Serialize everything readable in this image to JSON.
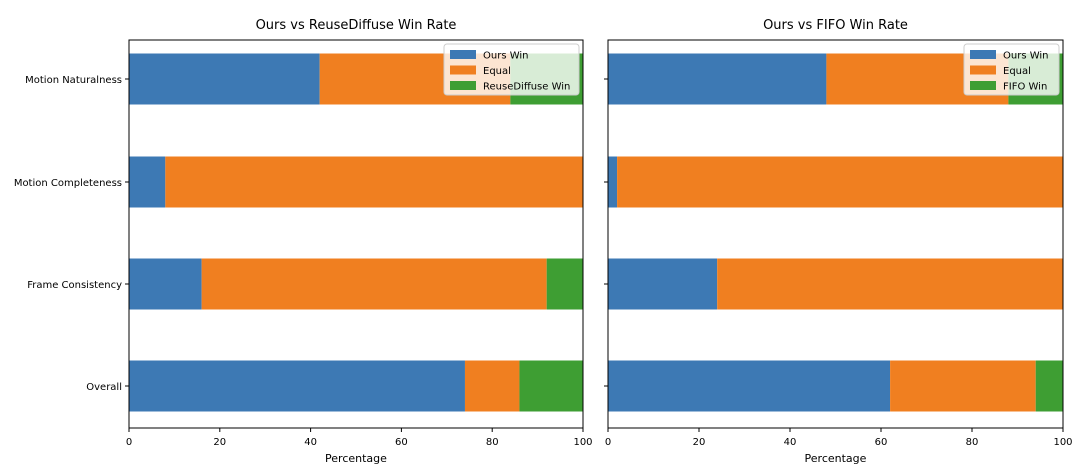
{
  "chart_data": [
    {
      "type": "bar",
      "orientation": "horizontal",
      "stacked": true,
      "title": "Ours vs ReuseDiffuse Win Rate",
      "xlabel": "Percentage",
      "ylabel": "",
      "xlim": [
        0,
        100
      ],
      "xticks": [
        "0",
        "20",
        "40",
        "60",
        "80",
        "100"
      ],
      "categories": [
        "Motion Naturalness",
        "Motion Completeness",
        "Frame Consistency",
        "Overall"
      ],
      "series": [
        {
          "name": "Ours Win",
          "color": "#3d79b4",
          "values": [
            42,
            8,
            16,
            74
          ]
        },
        {
          "name": "Equal",
          "color": "#f07f20",
          "values": [
            42,
            92,
            76,
            12
          ]
        },
        {
          "name": "ReuseDiffuse Win",
          "color": "#3e9e33",
          "values": [
            16,
            0,
            8,
            14
          ]
        }
      ],
      "legend": "top-right",
      "grid": false
    },
    {
      "type": "bar",
      "orientation": "horizontal",
      "stacked": true,
      "title": "Ours vs FIFO Win Rate",
      "xlabel": "Percentage",
      "ylabel": "",
      "xlim": [
        0,
        100
      ],
      "xticks": [
        "0",
        "20",
        "40",
        "60",
        "80",
        "100"
      ],
      "categories": [
        "Motion Naturalness",
        "Motion Completeness",
        "Frame Consistency",
        "Overall"
      ],
      "show_category_labels": false,
      "series": [
        {
          "name": "Ours Win",
          "color": "#3d79b4",
          "values": [
            48,
            2,
            24,
            62
          ]
        },
        {
          "name": "Equal",
          "color": "#f07f20",
          "values": [
            40,
            98,
            76,
            32
          ]
        },
        {
          "name": "FIFO Win",
          "color": "#3e9e33",
          "values": [
            12,
            0,
            0,
            6
          ]
        }
      ],
      "legend": "top-right",
      "grid": false
    }
  ]
}
